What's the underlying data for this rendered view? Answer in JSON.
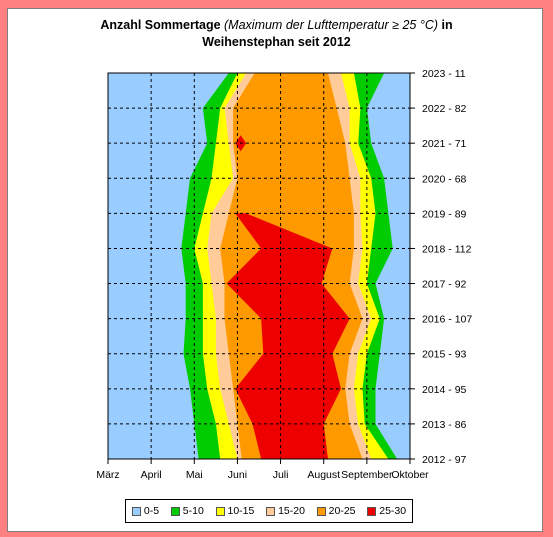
{
  "title": {
    "line1_bold": "Anzahl Sommertage",
    "line1_italic": "(Maximum der Lufttemperatur ≥ 25 °C)",
    "line1_end": "in",
    "line2": "Weihenstephan seit 2012"
  },
  "chart_data": {
    "type": "contour",
    "x_ticks": [
      "März",
      "April",
      "Mai",
      "Juni",
      "Juli",
      "August",
      "September",
      "Oktober"
    ],
    "y_ticks": [
      "2012 - 97",
      "2013 - 86",
      "2014 - 95",
      "2015 - 93",
      "2016 - 107",
      "2017 - 92",
      "2018 - 112",
      "2019 - 89",
      "2020 - 68",
      "2021 - 71",
      "2022 - 82",
      "2023 - 11"
    ],
    "years": [
      2012,
      2013,
      2014,
      2015,
      2016,
      2017,
      2018,
      2019,
      2020,
      2021,
      2022,
      2023
    ],
    "summer_days_per_year": [
      97,
      86,
      95,
      93,
      107,
      92,
      112,
      89,
      68,
      71,
      82,
      11
    ],
    "x_range": [
      "März",
      "Oktober"
    ],
    "grid": true,
    "legend_position": "bottom",
    "levels": [
      {
        "label": "0-5",
        "color": "#99ccff"
      },
      {
        "label": "5-10",
        "color": "#00cc00"
      },
      {
        "label": "10-15",
        "color": "#ffff00"
      },
      {
        "label": "15-20",
        "color": "#ffcc99"
      },
      {
        "label": "20-25",
        "color": "#ff9900"
      },
      {
        "label": "25-30",
        "color": "#ee0000"
      }
    ],
    "contour_bounds_months": {
      "5-10": [
        [
          2.1,
          6.7
        ],
        [
          2.0,
          6.2
        ],
        [
          1.9,
          6.2
        ],
        [
          1.75,
          6.3
        ],
        [
          1.8,
          6.4
        ],
        [
          1.8,
          6.2
        ],
        [
          1.7,
          6.6
        ],
        [
          1.8,
          6.5
        ],
        [
          1.9,
          6.4
        ],
        [
          2.3,
          6.1
        ],
        [
          2.2,
          6.0
        ],
        [
          2.8,
          6.4
        ]
      ],
      "10-15": [
        [
          2.6,
          6.5
        ],
        [
          2.5,
          5.95
        ],
        [
          2.3,
          5.9
        ],
        [
          2.2,
          6.0
        ],
        [
          2.2,
          6.3
        ],
        [
          2.2,
          6.0
        ],
        [
          2.0,
          6.1
        ],
        [
          2.2,
          6.2
        ],
        [
          2.4,
          6.1
        ],
        [
          2.5,
          5.8
        ],
        [
          2.6,
          5.85
        ],
        [
          3.0,
          5.7
        ]
      ],
      "15-20": [
        [
          3.0,
          6.1
        ],
        [
          2.8,
          5.8
        ],
        [
          2.6,
          5.7
        ],
        [
          2.5,
          5.8
        ],
        [
          2.5,
          6.1
        ],
        [
          2.4,
          5.8
        ],
        [
          2.3,
          5.9
        ],
        [
          2.4,
          5.85
        ],
        [
          2.9,
          5.85
        ],
        [
          2.8,
          5.6
        ],
        [
          2.7,
          5.6
        ],
        [
          3.2,
          5.4
        ]
      ],
      "20-25": [
        [
          3.1,
          5.9
        ],
        [
          3.0,
          5.6
        ],
        [
          2.9,
          5.5
        ],
        [
          2.8,
          5.6
        ],
        [
          2.7,
          5.9
        ],
        [
          2.7,
          5.6
        ],
        [
          2.6,
          5.7
        ],
        [
          2.8,
          5.7
        ],
        [
          3.0,
          5.6
        ],
        [
          2.9,
          5.5
        ],
        [
          2.9,
          5.3
        ],
        [
          3.4,
          5.1
        ]
      ],
      "25-30": [
        [
          3.55,
          5.1
        ],
        [
          3.35,
          5.0
        ],
        [
          2.95,
          5.4
        ],
        [
          3.6,
          5.2
        ],
        [
          3.55,
          5.6
        ],
        [
          2.75,
          4.95
        ],
        [
          3.55,
          5.2
        ],
        [
          2.95,
          3.2
        ],
        [
          null,
          null
        ],
        [
          2.95,
          3.2
        ],
        [
          null,
          null
        ],
        [
          null,
          null
        ]
      ]
    }
  }
}
